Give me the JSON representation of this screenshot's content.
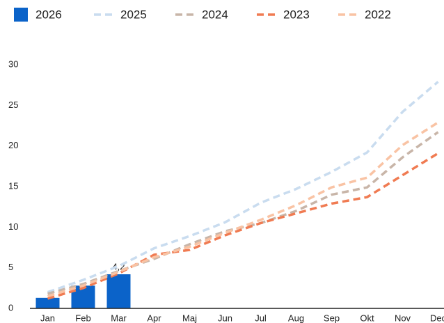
{
  "chart_data": {
    "type": "bar",
    "categories": [
      "Jan",
      "Feb",
      "Mar",
      "Apr",
      "Maj",
      "Jun",
      "Jul",
      "Aug",
      "Sep",
      "Okt",
      "Nov",
      "Dec"
    ],
    "series": [
      {
        "name": "2026",
        "type": "bar",
        "color": "#0b63c9",
        "values": [
          1.3,
          2.8,
          4.2,
          null,
          null,
          null,
          null,
          null,
          null,
          null,
          null,
          null
        ],
        "value_labels": [
          null,
          null,
          "4,2",
          null,
          null,
          null,
          null,
          null,
          null,
          null,
          null,
          null
        ]
      },
      {
        "name": "2025",
        "type": "line",
        "color": "#c9dcef",
        "values": [
          2.0,
          3.5,
          5.2,
          7.4,
          8.9,
          10.6,
          13.0,
          14.7,
          16.8,
          19.2,
          24.2,
          27.9
        ]
      },
      {
        "name": "2024",
        "type": "line",
        "color": "#c8b5a8",
        "values": [
          1.8,
          3.0,
          4.6,
          6.1,
          7.9,
          9.5,
          10.5,
          12.0,
          14.0,
          14.9,
          18.6,
          21.7
        ]
      },
      {
        "name": "2023",
        "type": "line",
        "color": "#f07b52",
        "values": [
          1.2,
          2.5,
          4.3,
          6.6,
          7.2,
          9.0,
          10.5,
          11.7,
          12.9,
          13.7,
          16.4,
          19.1
        ]
      },
      {
        "name": "2022",
        "type": "line",
        "color": "#f9c3a4",
        "values": [
          1.5,
          2.8,
          4.5,
          6.3,
          7.6,
          9.3,
          10.9,
          12.7,
          14.9,
          16.1,
          20.1,
          22.9
        ]
      }
    ],
    "ylim": [
      0,
      30
    ],
    "yticks": [
      0,
      5,
      10,
      15,
      20,
      25,
      30
    ],
    "grid": false
  }
}
